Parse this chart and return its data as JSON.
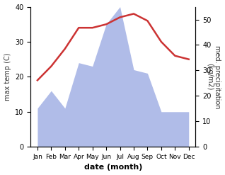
{
  "months": [
    "Jan",
    "Feb",
    "Mar",
    "Apr",
    "May",
    "Jun",
    "Jul",
    "Aug",
    "Sep",
    "Oct",
    "Nov",
    "Dec"
  ],
  "x": [
    0,
    1,
    2,
    3,
    4,
    5,
    6,
    7,
    8,
    9,
    10,
    11
  ],
  "temperature": [
    19,
    23,
    28,
    34,
    34,
    35,
    37,
    38,
    36,
    30,
    26,
    25
  ],
  "precipitation": [
    11,
    16,
    11,
    24,
    23,
    35,
    40,
    22,
    21,
    10,
    10,
    10
  ],
  "temp_color": "#cc3333",
  "precip_color": "#b0bce8",
  "ylim_left": [
    0,
    40
  ],
  "ylim_right": [
    0,
    55
  ],
  "ylabel_left": "max temp (C)",
  "ylabel_right": "med. precipitation\n(kg/m2)",
  "xlabel": "date (month)",
  "background_color": "#ffffff",
  "temp_linewidth": 1.8,
  "right_yticks": [
    0,
    10,
    20,
    30,
    40,
    50
  ],
  "left_yticks": [
    0,
    10,
    20,
    30,
    40
  ]
}
